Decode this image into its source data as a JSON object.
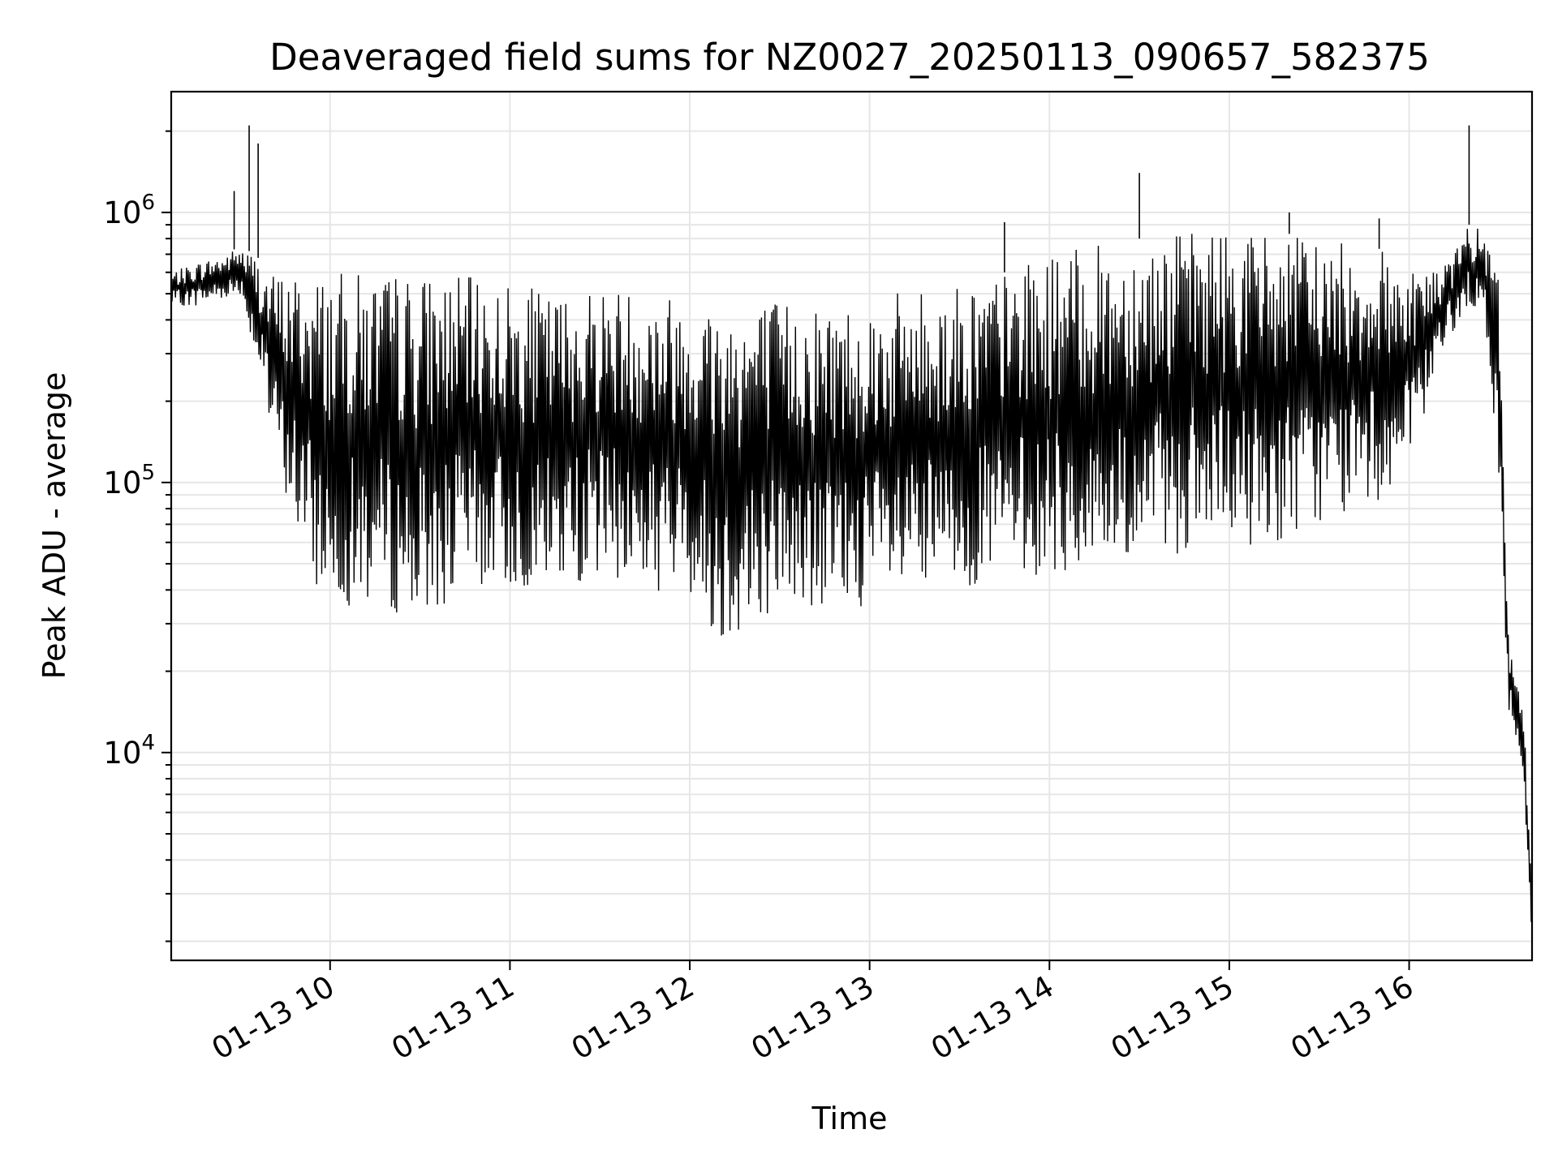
{
  "chart_data": {
    "type": "line",
    "title": "Deaveraged field sums for NZ0027_20250113_090657_582375",
    "xlabel": "Time",
    "ylabel": "Peak ADU - average",
    "yscale": "log",
    "ylim": [
      1700,
      2800000
    ],
    "xlim": [
      "2025-01-13 09:07",
      "2025-01-13 16:41"
    ],
    "grid": true,
    "x_ticks": [
      {
        "t": "2025-01-13 10:00",
        "label": "01-13 10"
      },
      {
        "t": "2025-01-13 11:00",
        "label": "01-13 11"
      },
      {
        "t": "2025-01-13 12:00",
        "label": "01-13 12"
      },
      {
        "t": "2025-01-13 13:00",
        "label": "01-13 13"
      },
      {
        "t": "2025-01-13 14:00",
        "label": "01-13 14"
      },
      {
        "t": "2025-01-13 15:00",
        "label": "01-13 15"
      },
      {
        "t": "2025-01-13 16:00",
        "label": "01-13 16"
      }
    ],
    "y_ticks": [
      {
        "value": 10000,
        "base": "10",
        "exp": "4"
      },
      {
        "value": 100000,
        "base": "10",
        "exp": "5"
      },
      {
        "value": 1000000,
        "base": "10",
        "exp": "6"
      }
    ],
    "series": [
      {
        "color": "#000000",
        "x": [
          "2025-01-13 09:07",
          "2025-01-13 09:15",
          "2025-01-13 09:25",
          "2025-01-13 09:30",
          "2025-01-13 09:35",
          "2025-01-13 09:40",
          "2025-01-13 09:45",
          "2025-01-13 09:50",
          "2025-01-13 09:55",
          "2025-01-13 10:00",
          "2025-01-13 10:15",
          "2025-01-13 10:30",
          "2025-01-13 10:45",
          "2025-01-13 11:00",
          "2025-01-13 11:15",
          "2025-01-13 11:30",
          "2025-01-13 11:45",
          "2025-01-13 12:00",
          "2025-01-13 12:10",
          "2025-01-13 12:30",
          "2025-01-13 12:45",
          "2025-01-13 13:00",
          "2025-01-13 13:15",
          "2025-01-13 13:30",
          "2025-01-13 13:45",
          "2025-01-13 14:00",
          "2025-01-13 14:15",
          "2025-01-13 14:30",
          "2025-01-13 14:45",
          "2025-01-13 15:00",
          "2025-01-13 15:15",
          "2025-01-13 15:30",
          "2025-01-13 15:45",
          "2025-01-13 16:00",
          "2025-01-13 16:10",
          "2025-01-13 16:20",
          "2025-01-13 16:25",
          "2025-01-13 16:30",
          "2025-01-13 16:33",
          "2025-01-13 16:35",
          "2025-01-13 16:38",
          "2025-01-13 16:41"
        ],
        "low": [
          450000,
          450000,
          480000,
          500000,
          300000,
          150000,
          90000,
          60000,
          40000,
          35000,
          35000,
          30000,
          40000,
          40000,
          40000,
          45000,
          40000,
          38000,
          25000,
          35000,
          32000,
          35000,
          35000,
          40000,
          45000,
          45000,
          45000,
          50000,
          55000,
          55000,
          60000,
          70000,
          80000,
          100000,
          300000,
          450000,
          400000,
          100000,
          15000,
          11000,
          8000,
          2000
        ],
        "high": [
          600000,
          650000,
          700000,
          750000,
          700000,
          600000,
          600000,
          600000,
          600000,
          600000,
          600000,
          600000,
          580000,
          550000,
          500000,
          550000,
          520000,
          500000,
          480000,
          480000,
          470000,
          480000,
          520000,
          550000,
          600000,
          700000,
          750000,
          800000,
          850000,
          900000,
          850000,
          800000,
          750000,
          700000,
          600000,
          900000,
          850000,
          600000,
          30000,
          20000,
          15000,
          4000
        ],
        "spikes": [
          {
            "t": "2025-01-13 09:33",
            "v": 2100000
          },
          {
            "t": "2025-01-13 09:36",
            "v": 1800000
          },
          {
            "t": "2025-01-13 09:28",
            "v": 1200000
          },
          {
            "t": "2025-01-13 13:45",
            "v": 920000
          },
          {
            "t": "2025-01-13 14:30",
            "v": 1400000
          },
          {
            "t": "2025-01-13 15:20",
            "v": 1000000
          },
          {
            "t": "2025-01-13 15:50",
            "v": 950000
          },
          {
            "t": "2025-01-13 16:20",
            "v": 2100000
          }
        ]
      }
    ]
  }
}
